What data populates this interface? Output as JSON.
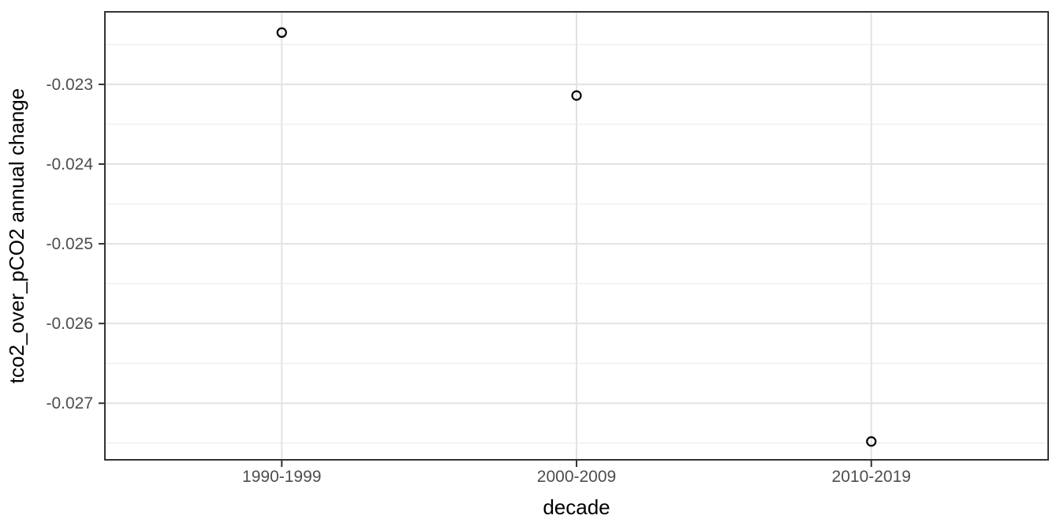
{
  "figure": {
    "background": "#ffffff"
  },
  "chart_data": {
    "type": "scatter",
    "title": "",
    "xlabel": "decade",
    "ylabel": "tco2_over_pCO2 annual change",
    "categories": [
      "1990-1999",
      "2000-2009",
      "2010-2019"
    ],
    "values": [
      -0.02235,
      -0.02314,
      -0.02748
    ],
    "y_ticks": [
      -0.023,
      -0.024,
      -0.025,
      -0.026,
      -0.027
    ],
    "y_tick_labels": [
      "-0.023",
      "-0.024",
      "-0.025",
      "-0.026",
      "-0.027"
    ],
    "y_minor_ticks": [
      -0.0225,
      -0.0235,
      -0.0245,
      -0.0255,
      -0.0265,
      -0.0275
    ],
    "ylim": [
      -0.02771,
      -0.02209
    ],
    "grid": "horizontal major+minor, vertical major at each category",
    "legend_position": "none",
    "marker": "open-circle",
    "colors": {
      "background": "#ffffff",
      "panel_background": "#ffffff",
      "panel_border": "#333333",
      "grid_major": "#e3e3e3",
      "grid_minor": "#f0f0f0",
      "tick_mark": "#333333",
      "tick_label": "#4d4d4d",
      "axis_title": "#000000",
      "point_stroke": "#000000",
      "point_fill": "none"
    }
  }
}
